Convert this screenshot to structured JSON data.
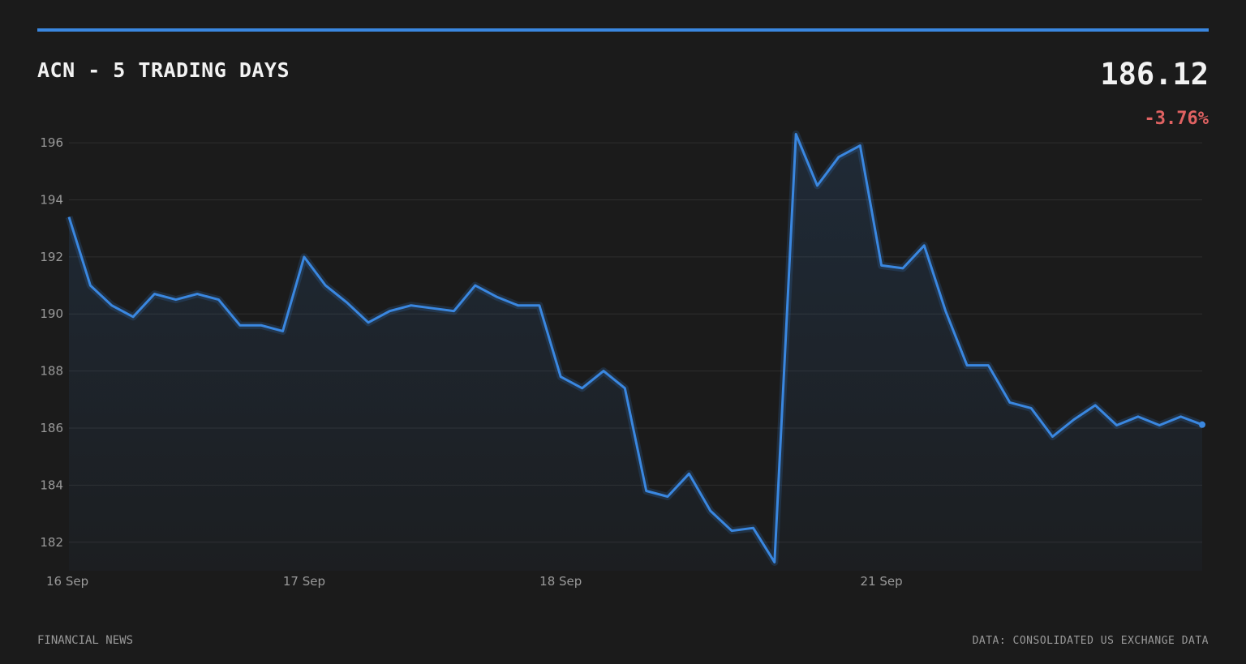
{
  "header": {
    "title": "ACN - 5 TRADING DAYS",
    "price": "186.12",
    "change": "-3.76%",
    "change_color": "#e06262"
  },
  "footer": {
    "left": "FINANCIAL NEWS",
    "right": "DATA: CONSOLIDATED US EXCHANGE DATA"
  },
  "colors": {
    "line": "#3a87e0",
    "background": "#1b1b1b",
    "grid": "#2e2e2e"
  },
  "chart_data": {
    "type": "area",
    "title": "ACN - 5 TRADING DAYS",
    "xlabel": "",
    "ylabel": "",
    "ylim": [
      181,
      196.4
    ],
    "yticks": [
      182,
      184,
      186,
      188,
      190,
      192,
      194,
      196
    ],
    "grid": true,
    "legend": "none",
    "x_tick_labels": [
      {
        "label": "16 Sep",
        "index": 0
      },
      {
        "label": "17 Sep",
        "index": 11
      },
      {
        "label": "18 Sep",
        "index": 23
      },
      {
        "label": "21 Sep",
        "index": 38
      }
    ],
    "series": [
      {
        "values": [
          193.4,
          191.0,
          190.3,
          189.9,
          190.7,
          190.5,
          190.7,
          190.5,
          189.6,
          189.6,
          189.4,
          192.0,
          191.0,
          190.4,
          189.7,
          190.1,
          190.3,
          190.2,
          190.1,
          191.0,
          190.6,
          190.3,
          190.3,
          187.8,
          187.4,
          188.0,
          187.4,
          183.8,
          183.6,
          184.4,
          183.1,
          182.4,
          182.5,
          181.3,
          196.3,
          194.5,
          195.5,
          195.9,
          191.7,
          191.6,
          192.4,
          190.1,
          188.2,
          188.2,
          186.9,
          186.7,
          185.7,
          186.3,
          186.8,
          186.1,
          186.4,
          186.1,
          186.4,
          186.12
        ]
      }
    ]
  }
}
